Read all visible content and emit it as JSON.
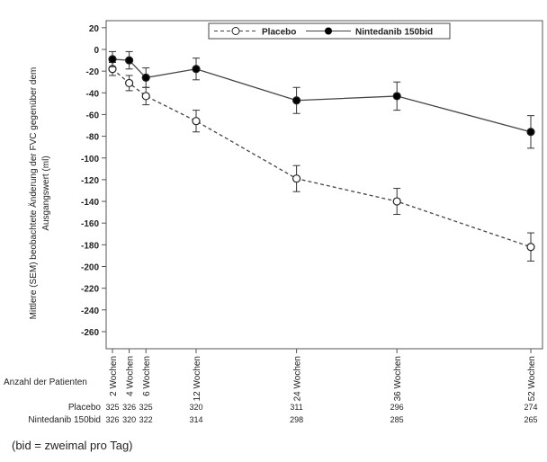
{
  "chart_data": {
    "type": "line",
    "ylabel": "Mittlere (SEM) beobachtete Änderung der FVC gegenüber dem Ausgangswert (ml)",
    "ylim": [
      -270,
      25
    ],
    "yticks": [
      20,
      0,
      -20,
      -40,
      -60,
      -80,
      -100,
      -120,
      -140,
      -160,
      -180,
      -200,
      -220,
      -240,
      -260
    ],
    "x": [
      2,
      4,
      6,
      12,
      24,
      36,
      52
    ],
    "xtick_labels": [
      "2 Wochen",
      "4 Wochen",
      "6 Wochen",
      "12 Wochen",
      "24 Wochen",
      "36 Wochen",
      "52 Wochen"
    ],
    "legend_position": "top",
    "series": [
      {
        "name": "Placebo",
        "style": "dashed-open-circle",
        "values": [
          -18,
          -31,
          -43,
          -66,
          -119,
          -140,
          -182
        ],
        "sem": [
          6,
          7,
          8,
          10,
          12,
          12,
          13
        ]
      },
      {
        "name": "Nintedanib 150bid",
        "style": "solid-filled-circle",
        "values": [
          -9,
          -10,
          -26,
          -18,
          -47,
          -43,
          -76
        ],
        "sem": [
          7,
          8,
          9,
          10,
          12,
          13,
          15
        ]
      }
    ]
  },
  "patients": {
    "title": "Anzahl der Patienten",
    "rows": [
      {
        "label": "Placebo",
        "counts": [
          "325",
          "326",
          "325",
          "320",
          "311",
          "296",
          "274"
        ]
      },
      {
        "label": "Nintedanib 150bid",
        "counts": [
          "326",
          "320",
          "322",
          "314",
          "298",
          "285",
          "265"
        ]
      }
    ]
  },
  "footnote": "(bid = zweimal pro Tag)"
}
